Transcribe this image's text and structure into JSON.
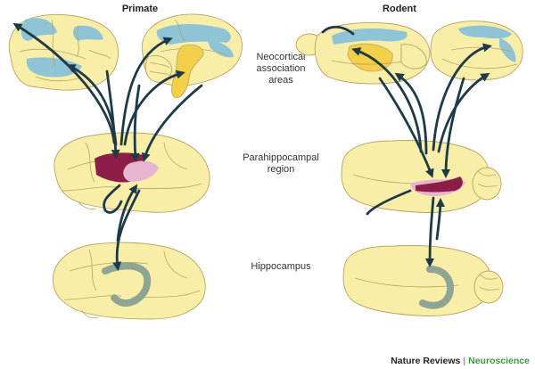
{
  "headings": {
    "primate": "Primate",
    "rodent": "Rodent"
  },
  "row_labels": {
    "neocortical": [
      "Neocortical",
      "association",
      "areas"
    ],
    "parahippocampal": [
      "Parahippocampal",
      "region"
    ],
    "hippocampus": "Hippocampus"
  },
  "branding": {
    "part1": "Nature Reviews",
    "separator": "|",
    "part2": "Neuroscience"
  },
  "colors": {
    "brain_fill": "#f8eea8",
    "brain_stroke": "#b8a460",
    "association_blue": "#8fc4d6",
    "perirhinal_crimson": "#8c1d47",
    "parahippocampal_pink": "#e7b5cf",
    "hippocampus_gray": "#8ea593",
    "arrow": "#1e3a48",
    "brand_green": "#3a9a40"
  }
}
